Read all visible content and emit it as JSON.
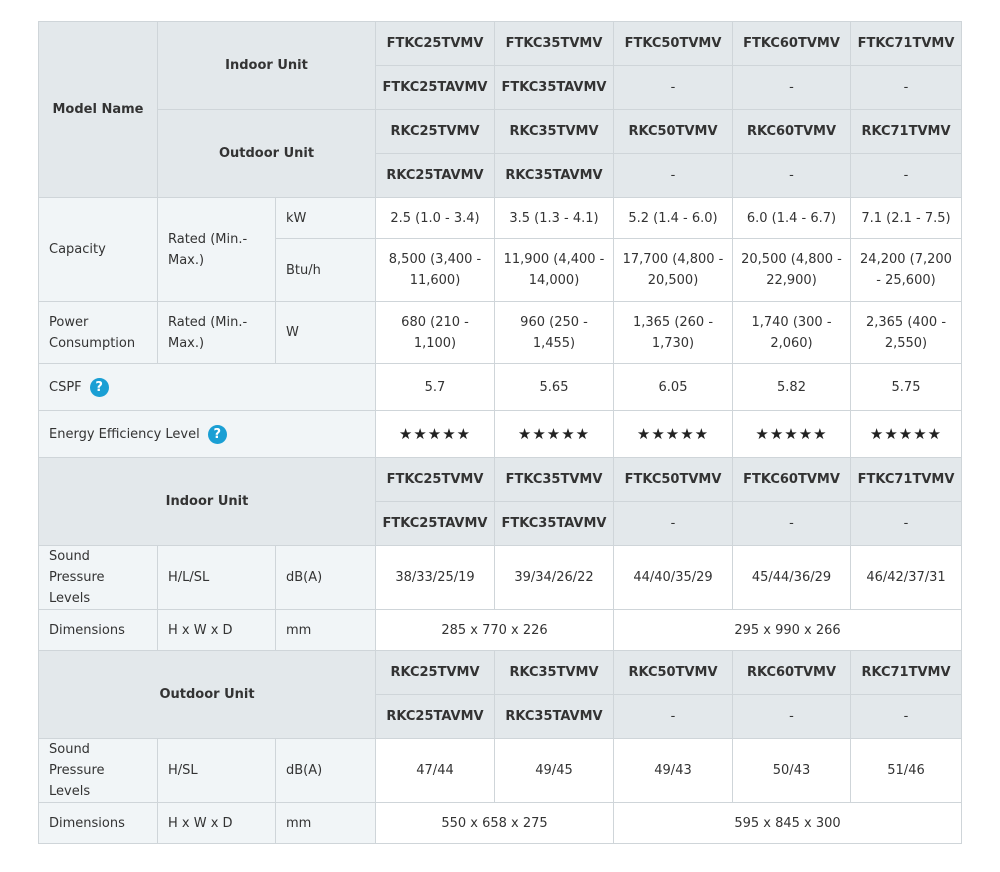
{
  "models": {
    "label": "Model Name",
    "indoor_label": "Indoor Unit",
    "outdoor_label": "Outdoor Unit",
    "indoor_row1": [
      "FTKC25TVMV",
      "FTKC35TVMV",
      "FTKC50TVMV",
      "FTKC60TVMV",
      "FTKC71TVMV"
    ],
    "indoor_row2": [
      "FTKC25TAVMV",
      "FTKC35TAVMV",
      "-",
      "-",
      "-"
    ],
    "outdoor_row1": [
      "RKC25TVMV",
      "RKC35TVMV",
      "RKC50TVMV",
      "RKC60TVMV",
      "RKC71TVMV"
    ],
    "outdoor_row2": [
      "RKC25TAVMV",
      "RKC35TAVMV",
      "-",
      "-",
      "-"
    ]
  },
  "capacity": {
    "label": "Capacity",
    "sub": "Rated (Min.-Max.)",
    "kw_unit": "kW",
    "btu_unit": "Btu/h",
    "kw": [
      "2.5 (1.0 - 3.4)",
      "3.5 (1.3 - 4.1)",
      "5.2 (1.4 - 6.0)",
      "6.0 (1.4 - 6.7)",
      "7.1 (2.1 - 7.5)"
    ],
    "btu": [
      "8,500 (3,400 - 11,600)",
      "11,900 (4,400 - 14,000)",
      "17,700 (4,800 - 20,500)",
      "20,500 (4,800 - 22,900)",
      "24,200 (7,200 - 25,600)"
    ]
  },
  "power": {
    "label": "Power Consumption",
    "sub": "Rated (Min.-Max.)",
    "unit": "W",
    "values": [
      "680 (210 - 1,100)",
      "960 (250 - 1,455)",
      "1,365 (260 - 1,730)",
      "1,740 (300 - 2,060)",
      "2,365 (400 - 2,550)"
    ]
  },
  "cspf": {
    "label": "CSPF",
    "help": "?",
    "values": [
      "5.7",
      "5.65",
      "6.05",
      "5.82",
      "5.75"
    ]
  },
  "energy": {
    "label": "Energy Efficiency Level",
    "help": "?",
    "values": [
      "★★★★★",
      "★★★★★",
      "★★★★★",
      "★★★★★",
      "★★★★★"
    ]
  },
  "indoor_section": {
    "label": "Indoor Unit",
    "sound": {
      "label": "Sound Pressure Levels",
      "sub": "H/L/SL",
      "unit": "dB(A)",
      "values": [
        "38/33/25/19",
        "39/34/26/22",
        "44/40/35/29",
        "45/44/36/29",
        "46/42/37/31"
      ]
    },
    "dimensions": {
      "label": "Dimensions",
      "sub": "H x W x D",
      "unit": "mm",
      "values": [
        "285 x 770 x 226",
        "295 x 990 x 266"
      ]
    }
  },
  "outdoor_section": {
    "label": "Outdoor Unit",
    "sound": {
      "label": "Sound Pressure Levels",
      "sub": "H/SL",
      "unit": "dB(A)",
      "values": [
        "47/44",
        "49/45",
        "49/43",
        "50/43",
        "51/46"
      ]
    },
    "dimensions": {
      "label": "Dimensions",
      "sub": "H x W x D",
      "unit": "mm",
      "values": [
        "550 x 658 x 275",
        "595 x 845 x 300"
      ]
    }
  }
}
